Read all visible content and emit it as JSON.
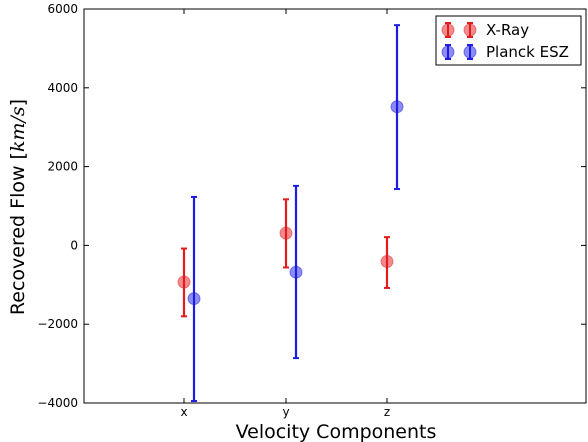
{
  "chart_data": {
    "type": "scatter",
    "subtype": "errorbar",
    "title": "",
    "xlabel": "Velocity Components",
    "ylabel_prefix": "Recovered Flow [",
    "ylabel_unit": "km/s",
    "ylabel_suffix": "]",
    "categories": [
      "x",
      "y",
      "z"
    ],
    "ylim": [
      -4000,
      6000
    ],
    "yticks": [
      -4000,
      -2000,
      0,
      2000,
      4000,
      6000
    ],
    "ytick_labels": [
      "−4000",
      "−2000",
      "0",
      "2000",
      "4000",
      "6000"
    ],
    "grid": false,
    "legend_position": "top-right",
    "series": [
      {
        "name": "X-Ray",
        "color": "#e41a1c",
        "values": [
          -930,
          310,
          -410
        ],
        "err_low": [
          -1800,
          -560,
          -1080
        ],
        "err_high": [
          -80,
          1170,
          210
        ]
      },
      {
        "name": "Planck ESZ",
        "color": "#1c1ce4",
        "values": [
          -1350,
          -680,
          3520
        ],
        "err_low": [
          -3950,
          -2860,
          1430
        ],
        "err_high": [
          1230,
          1510,
          5590
        ]
      }
    ]
  }
}
